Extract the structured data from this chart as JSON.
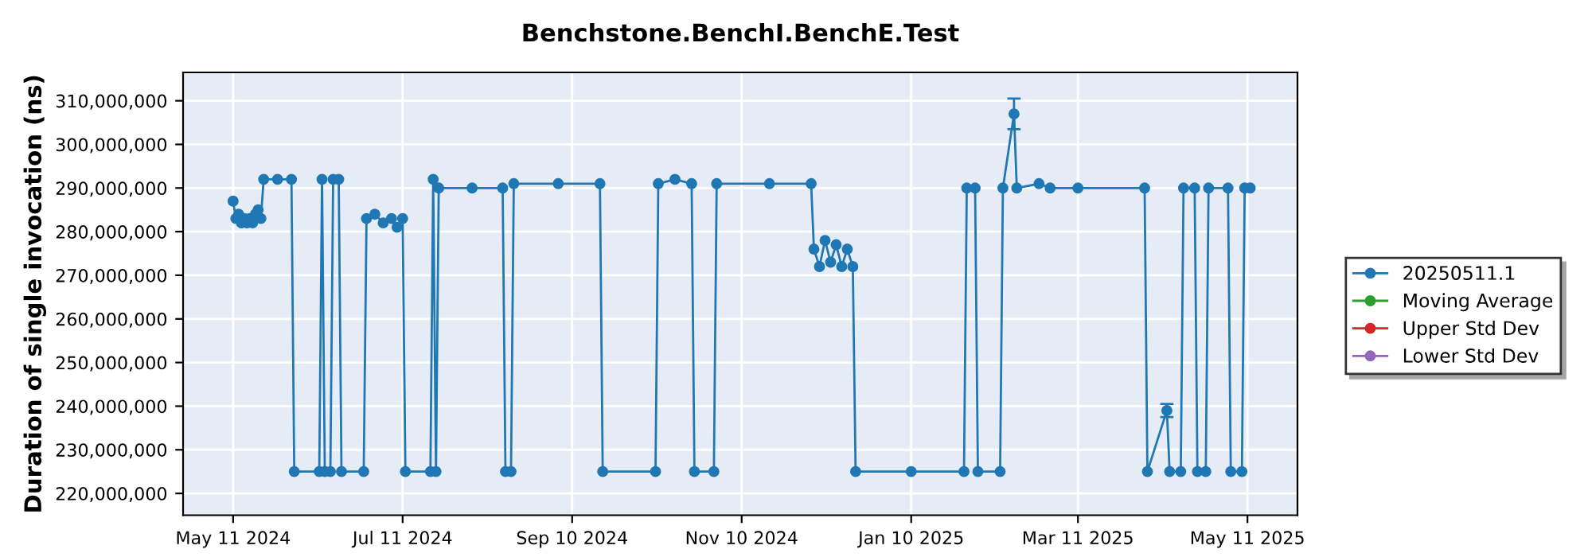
{
  "chart_data": {
    "type": "line",
    "title": "Benchstone.BenchI.BenchE.Test",
    "ylabel": "Duration of single invocation (ns)",
    "x": [
      "2024-05-11",
      "2024-05-12",
      "2024-05-13",
      "2024-05-14",
      "2024-05-15",
      "2024-05-16",
      "2024-05-17",
      "2024-05-18",
      "2024-05-19",
      "2024-05-20",
      "2024-05-21",
      "2024-05-22",
      "2024-05-27",
      "2024-06-01",
      "2024-06-02",
      "2024-06-11",
      "2024-06-12",
      "2024-06-13",
      "2024-06-15",
      "2024-06-16",
      "2024-06-18",
      "2024-06-19",
      "2024-06-27",
      "2024-06-28",
      "2024-07-01",
      "2024-07-04",
      "2024-07-07",
      "2024-07-09",
      "2024-07-11",
      "2024-07-12",
      "2024-07-21",
      "2024-07-22",
      "2024-07-23",
      "2024-07-24",
      "2024-08-05",
      "2024-08-16",
      "2024-08-17",
      "2024-08-19",
      "2024-08-20",
      "2024-09-05",
      "2024-09-20",
      "2024-09-21",
      "2024-10-10",
      "2024-10-11",
      "2024-10-17",
      "2024-10-23",
      "2024-10-24",
      "2024-10-31",
      "2024-11-01",
      "2024-11-20",
      "2024-12-05",
      "2024-12-06",
      "2024-12-08",
      "2024-12-10",
      "2024-12-12",
      "2024-12-14",
      "2024-12-16",
      "2024-12-18",
      "2024-12-20",
      "2024-12-21",
      "2025-01-10",
      "2025-01-29",
      "2025-01-30",
      "2025-02-02",
      "2025-02-03",
      "2025-02-11",
      "2025-02-12",
      "2025-02-16",
      "2025-02-17",
      "2025-02-25",
      "2025-03-01",
      "2025-03-11",
      "2025-04-04",
      "2025-04-05",
      "2025-04-12",
      "2025-04-13",
      "2025-04-17",
      "2025-04-18",
      "2025-04-22",
      "2025-04-23",
      "2025-04-26",
      "2025-04-27",
      "2025-05-04",
      "2025-05-05",
      "2025-05-09",
      "2025-05-10",
      "2025-05-12"
    ],
    "series": [
      {
        "name": "20250511.1",
        "color": "#1f77b4",
        "values": [
          287000000,
          283000000,
          284000000,
          282000000,
          283000000,
          282000000,
          283000000,
          282000000,
          284000000,
          285000000,
          283000000,
          292000000,
          292000000,
          292000000,
          225000000,
          225000000,
          292000000,
          225000000,
          225000000,
          292000000,
          292000000,
          225000000,
          225000000,
          283000000,
          284000000,
          282000000,
          283000000,
          281000000,
          283000000,
          225000000,
          225000000,
          292000000,
          225000000,
          290000000,
          290000000,
          290000000,
          225000000,
          225000000,
          291000000,
          291000000,
          291000000,
          225000000,
          225000000,
          291000000,
          292000000,
          291000000,
          225000000,
          225000000,
          291000000,
          291000000,
          291000000,
          276000000,
          272000000,
          278000000,
          273000000,
          277000000,
          272000000,
          276000000,
          272000000,
          225000000,
          225000000,
          225000000,
          290000000,
          290000000,
          225000000,
          225000000,
          290000000,
          307000000,
          290000000,
          291000000,
          290000000,
          290000000,
          290000000,
          225000000,
          239000000,
          225000000,
          225000000,
          290000000,
          290000000,
          225000000,
          225000000,
          290000000,
          290000000,
          225000000,
          225000000,
          290000000,
          290000000
        ],
        "errors": [
          null,
          null,
          null,
          null,
          null,
          null,
          null,
          null,
          null,
          null,
          null,
          null,
          null,
          null,
          null,
          null,
          null,
          null,
          null,
          null,
          null,
          null,
          null,
          null,
          null,
          null,
          null,
          null,
          null,
          null,
          null,
          null,
          null,
          null,
          null,
          null,
          null,
          null,
          null,
          null,
          null,
          null,
          null,
          null,
          null,
          null,
          null,
          null,
          null,
          null,
          null,
          null,
          null,
          null,
          null,
          null,
          null,
          null,
          null,
          null,
          null,
          null,
          null,
          null,
          null,
          null,
          null,
          3500000,
          null,
          null,
          null,
          null,
          null,
          null,
          1500000,
          null,
          null,
          null,
          null,
          null,
          null,
          null,
          null,
          null,
          null,
          null,
          null
        ]
      },
      {
        "name": "Moving Average",
        "color": "#2ca02c",
        "values": [
          null,
          null,
          null,
          null,
          null,
          null,
          null,
          null,
          null,
          null,
          null,
          null,
          null,
          null,
          null,
          null,
          null,
          null,
          null,
          null,
          null,
          null,
          null,
          null,
          null,
          null,
          null,
          null,
          null,
          null,
          null,
          null,
          null,
          null,
          null,
          null,
          null,
          null,
          null,
          null,
          null,
          null,
          null,
          null,
          null,
          null,
          null,
          null,
          null,
          null,
          null,
          null,
          null,
          null,
          null,
          null,
          null,
          null,
          null,
          null,
          null,
          null,
          null,
          null,
          null,
          null,
          null,
          null,
          null,
          null,
          null,
          null,
          null,
          null,
          null,
          null,
          null,
          null,
          null,
          null,
          null,
          null,
          null,
          null,
          null,
          null,
          null
        ]
      },
      {
        "name": "Upper Std Dev",
        "color": "#d62728",
        "values": [
          null,
          null,
          null,
          null,
          null,
          null,
          null,
          null,
          null,
          null,
          null,
          null,
          null,
          null,
          null,
          null,
          null,
          null,
          null,
          null,
          null,
          null,
          null,
          null,
          null,
          null,
          null,
          null,
          null,
          null,
          null,
          null,
          null,
          null,
          null,
          null,
          null,
          null,
          null,
          null,
          null,
          null,
          null,
          null,
          null,
          null,
          null,
          null,
          null,
          null,
          null,
          null,
          null,
          null,
          null,
          null,
          null,
          null,
          null,
          null,
          null,
          null,
          null,
          null,
          null,
          null,
          null,
          null,
          null,
          null,
          null,
          null,
          null,
          null,
          null,
          null,
          null,
          null,
          null,
          null,
          null,
          null,
          null,
          null,
          null,
          null,
          null
        ]
      },
      {
        "name": "Lower Std Dev",
        "color": "#9467bd",
        "values": [
          null,
          null,
          null,
          null,
          null,
          null,
          null,
          null,
          null,
          null,
          null,
          null,
          null,
          null,
          null,
          null,
          null,
          null,
          null,
          null,
          null,
          null,
          null,
          null,
          null,
          null,
          null,
          null,
          null,
          null,
          null,
          null,
          null,
          null,
          null,
          null,
          null,
          null,
          null,
          null,
          null,
          null,
          null,
          null,
          null,
          null,
          null,
          null,
          null,
          null,
          null,
          null,
          null,
          null,
          null,
          null,
          null,
          null,
          null,
          null,
          null,
          null,
          null,
          null,
          null,
          null,
          null,
          null,
          null,
          null,
          null,
          null,
          null,
          null,
          null,
          null,
          null,
          null,
          null,
          null,
          null,
          null,
          null,
          null,
          null,
          null,
          null
        ]
      }
    ],
    "xlim": [
      "2024-04-23",
      "2025-05-29"
    ],
    "xticks": [
      {
        "value": "2024-05-11",
        "label": "May 11 2024"
      },
      {
        "value": "2024-07-11",
        "label": "Jul 11 2024"
      },
      {
        "value": "2024-09-10",
        "label": "Sep 10 2024"
      },
      {
        "value": "2024-11-10",
        "label": "Nov 10 2024"
      },
      {
        "value": "2025-01-10",
        "label": "Jan 10 2025"
      },
      {
        "value": "2025-03-11",
        "label": "Mar 11 2025"
      },
      {
        "value": "2025-05-11",
        "label": "May 11 2025"
      }
    ],
    "ylim": [
      215000000,
      316500000
    ],
    "yticks": [
      {
        "value": 220000000,
        "label": "220,000,000"
      },
      {
        "value": 230000000,
        "label": "230,000,000"
      },
      {
        "value": 240000000,
        "label": "240,000,000"
      },
      {
        "value": 250000000,
        "label": "250,000,000"
      },
      {
        "value": 260000000,
        "label": "260,000,000"
      },
      {
        "value": 270000000,
        "label": "270,000,000"
      },
      {
        "value": 280000000,
        "label": "280,000,000"
      },
      {
        "value": 290000000,
        "label": "290,000,000"
      },
      {
        "value": 300000000,
        "label": "300,000,000"
      },
      {
        "value": 310000000,
        "label": "310,000,000"
      }
    ],
    "grid": true,
    "legend": "right",
    "marker": "circle",
    "line_style": "solid"
  }
}
